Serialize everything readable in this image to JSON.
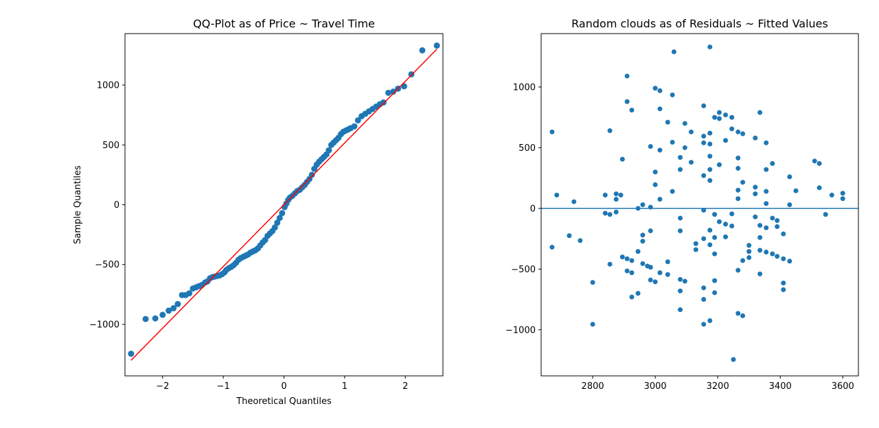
{
  "colors": {
    "points": "#1f77b4",
    "reference_line": "#ff0000",
    "zero_line": "#1f77b4",
    "axes": "#000000"
  },
  "chart_data": [
    {
      "type": "scatter",
      "title": "QQ-Plot as of Price ~ Travel Time",
      "xlabel": "Theoretical Quantiles",
      "ylabel": "Sample Quantiles",
      "xlim": [
        -2.62,
        2.62
      ],
      "ylim": [
        -1430,
        1430
      ],
      "xticks": [
        -2,
        -1,
        0,
        1,
        2
      ],
      "xtick_labels": [
        "−2",
        "−1",
        "0",
        "1",
        "2"
      ],
      "yticks": [
        -1000,
        -500,
        0,
        500,
        1000
      ],
      "ytick_labels": [
        "−1000",
        "−500",
        "0",
        "500",
        "1000"
      ],
      "reference_line": {
        "x": [
          -2.52,
          2.52
        ],
        "y": [
          -1300,
          1300
        ]
      },
      "points": [
        [
          -2.52,
          -1245
        ],
        [
          -2.28,
          -955
        ],
        [
          -2.12,
          -950
        ],
        [
          -2.0,
          -920
        ],
        [
          -1.9,
          -885
        ],
        [
          -1.82,
          -865
        ],
        [
          -1.75,
          -830
        ],
        [
          -1.68,
          -755
        ],
        [
          -1.62,
          -755
        ],
        [
          -1.56,
          -740
        ],
        [
          -1.5,
          -700
        ],
        [
          -1.45,
          -690
        ],
        [
          -1.4,
          -680
        ],
        [
          -1.35,
          -670
        ],
        [
          -1.3,
          -650
        ],
        [
          -1.26,
          -640
        ],
        [
          -1.22,
          -615
        ],
        [
          -1.18,
          -605
        ],
        [
          -1.14,
          -600
        ],
        [
          -1.1,
          -595
        ],
        [
          -1.06,
          -590
        ],
        [
          -1.02,
          -580
        ],
        [
          -0.98,
          -565
        ],
        [
          -0.95,
          -545
        ],
        [
          -0.91,
          -530
        ],
        [
          -0.87,
          -520
        ],
        [
          -0.83,
          -505
        ],
        [
          -0.79,
          -485
        ],
        [
          -0.75,
          -460
        ],
        [
          -0.71,
          -445
        ],
        [
          -0.67,
          -435
        ],
        [
          -0.63,
          -425
        ],
        [
          -0.59,
          -415
        ],
        [
          -0.55,
          -400
        ],
        [
          -0.51,
          -390
        ],
        [
          -0.47,
          -380
        ],
        [
          -0.43,
          -365
        ],
        [
          -0.39,
          -340
        ],
        [
          -0.35,
          -315
        ],
        [
          -0.31,
          -295
        ],
        [
          -0.27,
          -260
        ],
        [
          -0.23,
          -240
        ],
        [
          -0.19,
          -220
        ],
        [
          -0.15,
          -190
        ],
        [
          -0.11,
          -150
        ],
        [
          -0.07,
          -110
        ],
        [
          -0.03,
          -70
        ],
        [
          0.01,
          -20
        ],
        [
          0.04,
          10
        ],
        [
          0.07,
          40
        ],
        [
          0.1,
          60
        ],
        [
          0.14,
          75
        ],
        [
          0.18,
          95
        ],
        [
          0.22,
          115
        ],
        [
          0.26,
          125
        ],
        [
          0.3,
          145
        ],
        [
          0.34,
          165
        ],
        [
          0.38,
          190
        ],
        [
          0.42,
          215
        ],
        [
          0.46,
          250
        ],
        [
          0.5,
          300
        ],
        [
          0.54,
          335
        ],
        [
          0.58,
          360
        ],
        [
          0.62,
          380
        ],
        [
          0.66,
          400
        ],
        [
          0.7,
          420
        ],
        [
          0.74,
          455
        ],
        [
          0.78,
          500
        ],
        [
          0.82,
          520
        ],
        [
          0.86,
          540
        ],
        [
          0.9,
          560
        ],
        [
          0.94,
          590
        ],
        [
          0.98,
          610
        ],
        [
          1.02,
          620
        ],
        [
          1.06,
          630
        ],
        [
          1.1,
          640
        ],
        [
          1.16,
          655
        ],
        [
          1.22,
          705
        ],
        [
          1.28,
          740
        ],
        [
          1.34,
          760
        ],
        [
          1.4,
          780
        ],
        [
          1.46,
          800
        ],
        [
          1.52,
          820
        ],
        [
          1.58,
          840
        ],
        [
          1.64,
          855
        ],
        [
          1.72,
          935
        ],
        [
          1.8,
          945
        ],
        [
          1.88,
          970
        ],
        [
          1.98,
          990
        ],
        [
          2.1,
          1090
        ],
        [
          2.28,
          1290
        ],
        [
          2.52,
          1330
        ]
      ]
    },
    {
      "type": "scatter",
      "title": "Random clouds as of Residuals ~ Fitted Values",
      "xlabel": "",
      "ylabel": "",
      "xlim": [
        2635,
        3650
      ],
      "ylim": [
        -1380,
        1440
      ],
      "xticks": [
        2800,
        3000,
        3200,
        3400,
        3600
      ],
      "xtick_labels": [
        "2800",
        "3000",
        "3200",
        "3400",
        "3600"
      ],
      "yticks": [
        -1000,
        -500,
        0,
        500,
        1000
      ],
      "yticks_labels_note": "",
      "ytick_labels": [
        "−1000",
        "−500",
        "0",
        "500",
        "1000"
      ],
      "hline_y": 0,
      "points": [
        [
          2670,
          630
        ],
        [
          2685,
          110
        ],
        [
          2740,
          55
        ],
        [
          2670,
          -320
        ],
        [
          2725,
          -225
        ],
        [
          2760,
          -265
        ],
        [
          2800,
          -610
        ],
        [
          2800,
          -955
        ],
        [
          2840,
          110
        ],
        [
          2840,
          -40
        ],
        [
          2855,
          640
        ],
        [
          2855,
          -460
        ],
        [
          2855,
          -50
        ],
        [
          2875,
          120
        ],
        [
          2875,
          -30
        ],
        [
          2875,
          75
        ],
        [
          2890,
          110
        ],
        [
          2895,
          405
        ],
        [
          2895,
          -400
        ],
        [
          2910,
          1090
        ],
        [
          2910,
          880
        ],
        [
          2910,
          -415
        ],
        [
          2910,
          -515
        ],
        [
          2925,
          810
        ],
        [
          2925,
          -430
        ],
        [
          2925,
          -530
        ],
        [
          2925,
          -730
        ],
        [
          2945,
          -700
        ],
        [
          2945,
          -355
        ],
        [
          2945,
          0
        ],
        [
          2960,
          30
        ],
        [
          2960,
          -220
        ],
        [
          2960,
          -270
        ],
        [
          2960,
          -455
        ],
        [
          2975,
          -475
        ],
        [
          2985,
          510
        ],
        [
          2985,
          10
        ],
        [
          2985,
          -185
        ],
        [
          2985,
          -485
        ],
        [
          2985,
          -590
        ],
        [
          3000,
          990
        ],
        [
          3000,
          300
        ],
        [
          3000,
          195
        ],
        [
          3000,
          -605
        ],
        [
          3015,
          970
        ],
        [
          3015,
          820
        ],
        [
          3015,
          480
        ],
        [
          3015,
          75
        ],
        [
          3015,
          -530
        ],
        [
          3040,
          710
        ],
        [
          3040,
          -440
        ],
        [
          3040,
          -545
        ],
        [
          3055,
          935
        ],
        [
          3055,
          545
        ],
        [
          3055,
          140
        ],
        [
          3060,
          1290
        ],
        [
          3080,
          420
        ],
        [
          3080,
          320
        ],
        [
          3080,
          -80
        ],
        [
          3080,
          -185
        ],
        [
          3080,
          -585
        ],
        [
          3080,
          -680
        ],
        [
          3080,
          -835
        ],
        [
          3095,
          700
        ],
        [
          3095,
          500
        ],
        [
          3095,
          -600
        ],
        [
          3115,
          630
        ],
        [
          3115,
          380
        ],
        [
          3130,
          -290
        ],
        [
          3130,
          -340
        ],
        [
          3155,
          845
        ],
        [
          3155,
          595
        ],
        [
          3155,
          540
        ],
        [
          3155,
          270
        ],
        [
          3155,
          -15
        ],
        [
          3155,
          -250
        ],
        [
          3155,
          -655
        ],
        [
          3155,
          -750
        ],
        [
          3155,
          -955
        ],
        [
          3175,
          1330
        ],
        [
          3175,
          620
        ],
        [
          3175,
          530
        ],
        [
          3175,
          430
        ],
        [
          3175,
          320
        ],
        [
          3175,
          230
        ],
        [
          3175,
          -180
        ],
        [
          3175,
          -300
        ],
        [
          3175,
          -925
        ],
        [
          3190,
          750
        ],
        [
          3190,
          -50
        ],
        [
          3190,
          -240
        ],
        [
          3190,
          -375
        ],
        [
          3190,
          -595
        ],
        [
          3190,
          -695
        ],
        [
          3205,
          790
        ],
        [
          3205,
          740
        ],
        [
          3205,
          360
        ],
        [
          3205,
          -110
        ],
        [
          3225,
          770
        ],
        [
          3225,
          560
        ],
        [
          3225,
          -130
        ],
        [
          3225,
          -235
        ],
        [
          3245,
          750
        ],
        [
          3245,
          655
        ],
        [
          3245,
          -45
        ],
        [
          3245,
          -145
        ],
        [
          3250,
          -1245
        ],
        [
          3265,
          630
        ],
        [
          3265,
          415
        ],
        [
          3265,
          330
        ],
        [
          3265,
          150
        ],
        [
          3265,
          80
        ],
        [
          3265,
          -510
        ],
        [
          3265,
          -865
        ],
        [
          3280,
          615
        ],
        [
          3280,
          215
        ],
        [
          3280,
          -430
        ],
        [
          3280,
          -885
        ],
        [
          3300,
          -305
        ],
        [
          3300,
          -355
        ],
        [
          3300,
          -405
        ],
        [
          3320,
          580
        ],
        [
          3320,
          175
        ],
        [
          3320,
          120
        ],
        [
          3320,
          -70
        ],
        [
          3335,
          790
        ],
        [
          3335,
          -140
        ],
        [
          3335,
          -240
        ],
        [
          3335,
          -345
        ],
        [
          3335,
          -540
        ],
        [
          3355,
          540
        ],
        [
          3355,
          320
        ],
        [
          3355,
          140
        ],
        [
          3355,
          40
        ],
        [
          3355,
          -160
        ],
        [
          3355,
          -360
        ],
        [
          3375,
          370
        ],
        [
          3375,
          -80
        ],
        [
          3375,
          -375
        ],
        [
          3390,
          -100
        ],
        [
          3390,
          -150
        ],
        [
          3390,
          -395
        ],
        [
          3410,
          -210
        ],
        [
          3410,
          -415
        ],
        [
          3410,
          -615
        ],
        [
          3410,
          -670
        ],
        [
          3430,
          260
        ],
        [
          3430,
          30
        ],
        [
          3430,
          -435
        ],
        [
          3450,
          145
        ],
        [
          3510,
          390
        ],
        [
          3525,
          370
        ],
        [
          3525,
          170
        ],
        [
          3545,
          -50
        ],
        [
          3565,
          110
        ],
        [
          3600,
          125
        ],
        [
          3600,
          80
        ]
      ]
    }
  ]
}
